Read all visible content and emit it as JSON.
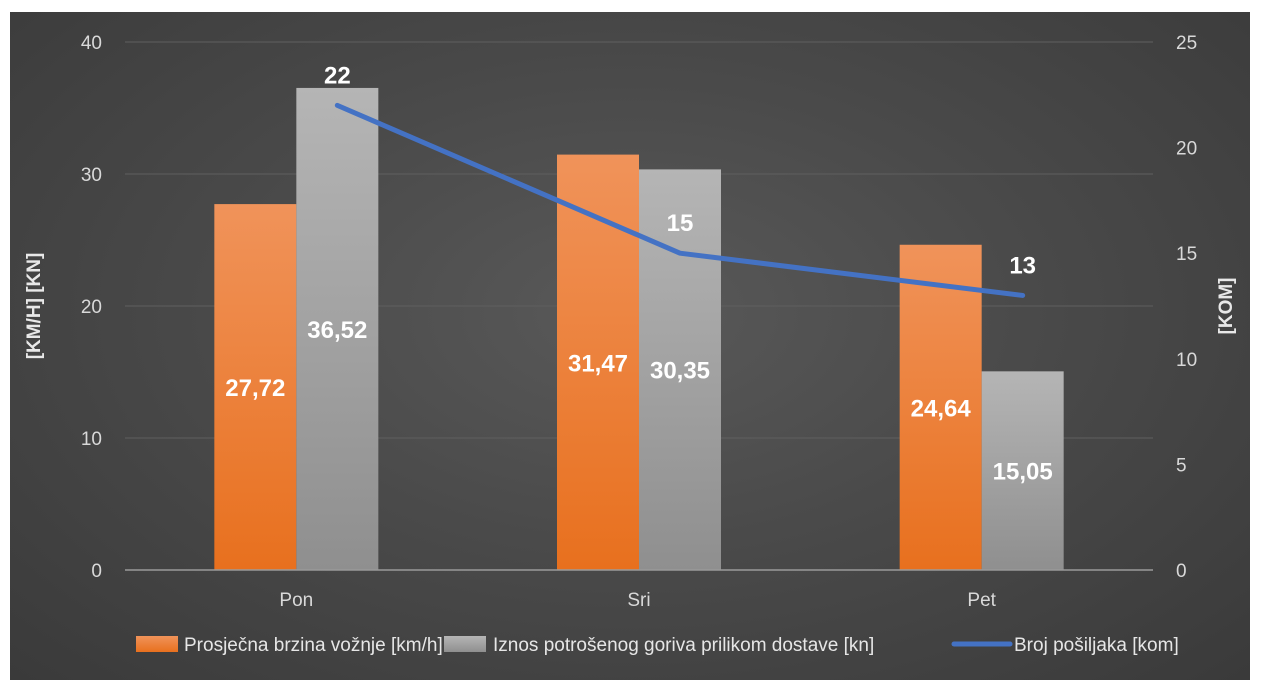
{
  "chart_data": {
    "type": "bar",
    "categories": [
      "Pon",
      "Sri",
      "Pet"
    ],
    "series": [
      {
        "name": "Prosječna brzina vožnje [km/h]",
        "type": "bar",
        "axis": "left",
        "values": [
          27.72,
          31.47,
          24.64
        ],
        "labels": [
          "27,72",
          "31,47",
          "24,64"
        ],
        "color": "#ED7D31"
      },
      {
        "name": "Iznos potrošenog goriva prilikom dostave [kn]",
        "type": "bar",
        "axis": "left",
        "values": [
          36.52,
          30.35,
          15.05
        ],
        "labels": [
          "36,52",
          "30,35",
          "15,05"
        ],
        "color": "#A5A5A5"
      },
      {
        "name": "Broj pošiljaka [kom]",
        "type": "line",
        "axis": "right",
        "values": [
          22,
          15,
          13
        ],
        "labels": [
          "22",
          "15",
          "13"
        ],
        "color": "#4472C4"
      }
    ],
    "ylabel": "[KM/H] [KN]",
    "y2label": "[KOM]",
    "ylim": [
      0,
      40
    ],
    "y2lim": [
      0,
      25
    ],
    "yticks": [
      "0",
      "10",
      "20",
      "30",
      "40"
    ],
    "y2ticks": [
      "0",
      "5",
      "10",
      "15",
      "20",
      "25"
    ],
    "grid": true,
    "legend": "bottom",
    "background": "#404040"
  }
}
